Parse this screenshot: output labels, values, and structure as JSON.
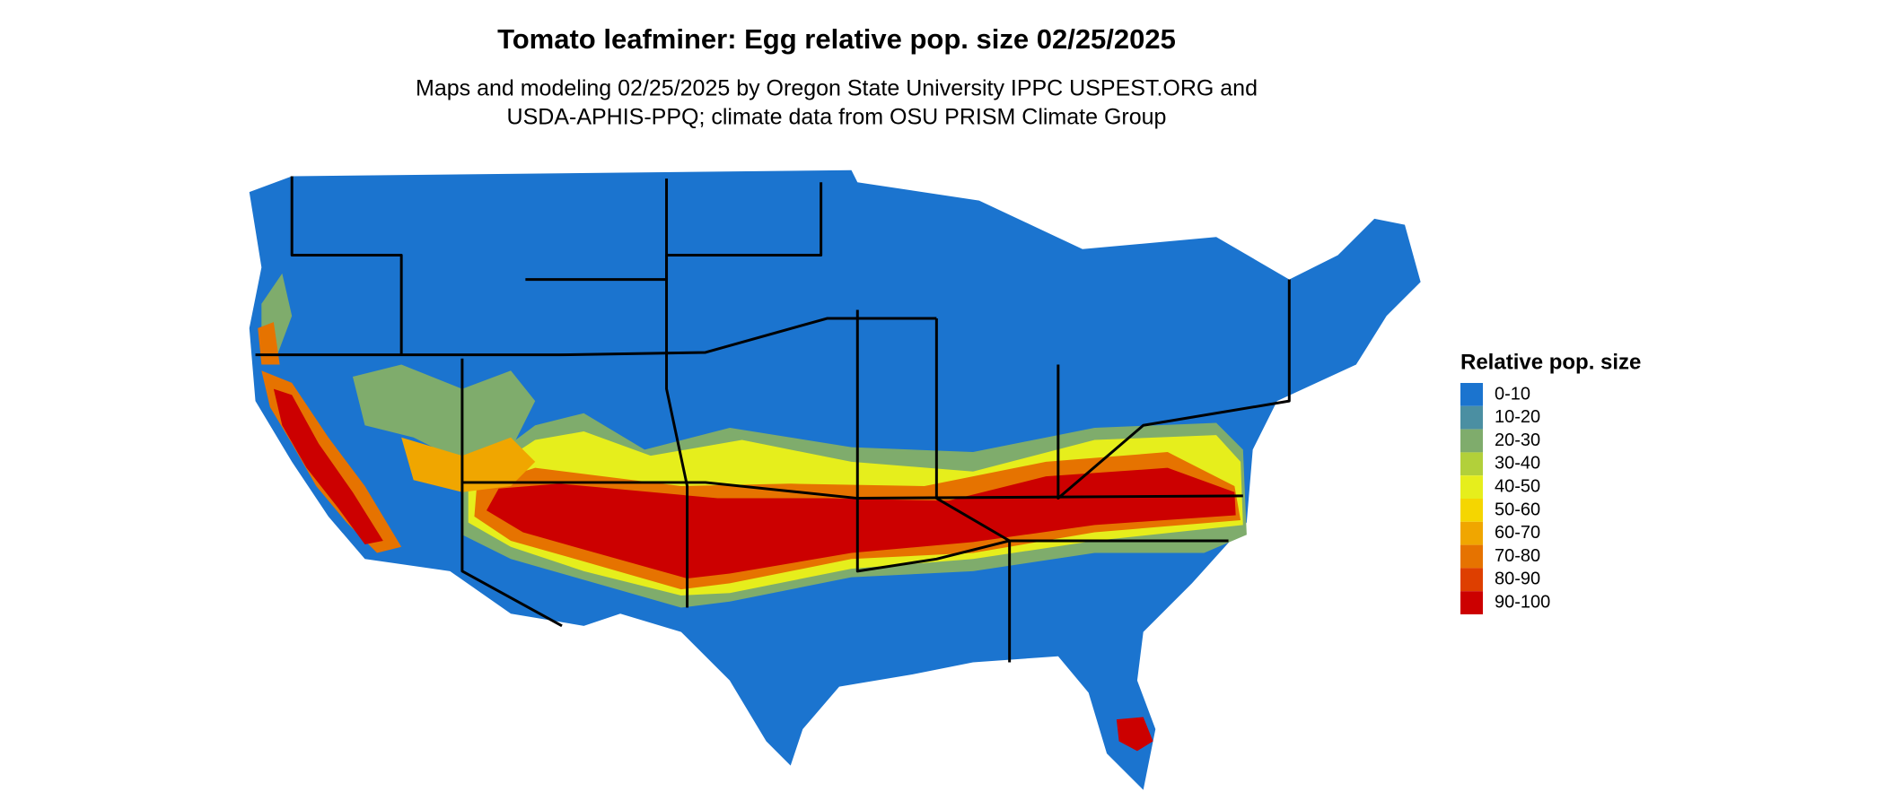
{
  "title": "Tomato leafminer: Egg relative pop. size 02/25/2025",
  "subtitle": [
    "Maps and modeling 02/25/2025 by Oregon State University IPPC USPEST.ORG and",
    "USDA-APHIS-PPQ; climate data from OSU PRISM Climate Group"
  ],
  "legend": {
    "title": "Relative pop. size",
    "items": [
      {
        "label": "0-10",
        "color": "#1b74cf"
      },
      {
        "label": "10-20",
        "color": "#4b8fa2"
      },
      {
        "label": "20-30",
        "color": "#7fac6c"
      },
      {
        "label": "30-40",
        "color": "#b2d03a"
      },
      {
        "label": "40-50",
        "color": "#e6ee1c"
      },
      {
        "label": "50-60",
        "color": "#f5d600"
      },
      {
        "label": "60-70",
        "color": "#f0a600"
      },
      {
        "label": "70-80",
        "color": "#e67300"
      },
      {
        "label": "80-90",
        "color": "#de3f00"
      },
      {
        "label": "90-100",
        "color": "#cc0000"
      }
    ]
  }
}
